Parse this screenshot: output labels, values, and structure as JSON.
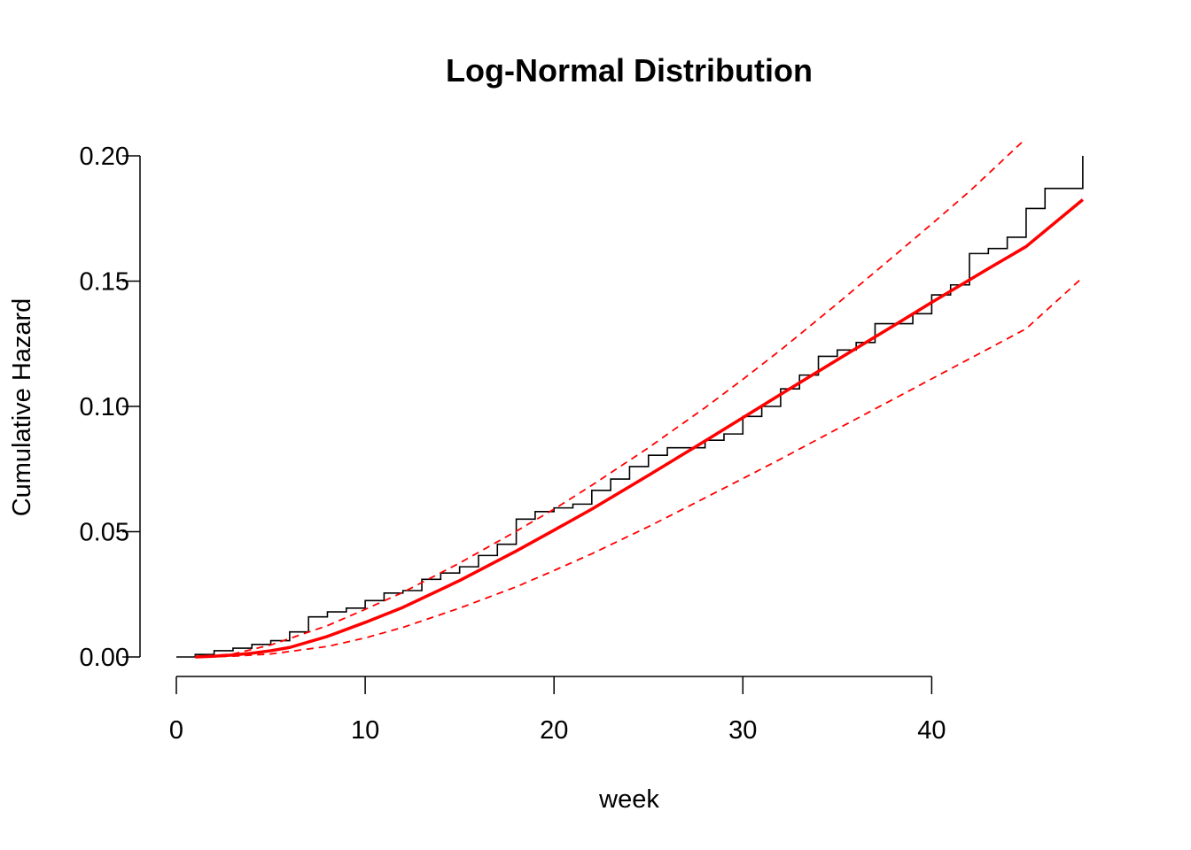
{
  "chart_data": {
    "type": "line",
    "title": "Log-Normal Distribution",
    "xlabel": "week",
    "ylabel": "Cumulative Hazard",
    "xlim": [
      0,
      48
    ],
    "ylim": [
      0,
      0.2
    ],
    "x_ticks": [
      0,
      10,
      20,
      30,
      40
    ],
    "x_tick_labels": [
      "0",
      "10",
      "20",
      "30",
      "40"
    ],
    "y_ticks": [
      0,
      0.05,
      0.1,
      0.15,
      0.2
    ],
    "y_tick_labels": [
      "0.00",
      "0.05",
      "0.10",
      "0.15",
      "0.20"
    ],
    "grid": false,
    "legend": "none",
    "colors": {
      "step": "#000000",
      "fit": "#ff0000",
      "ci": "#ff0000"
    },
    "series": [
      {
        "style": "step",
        "points": [
          [
            0,
            0
          ],
          [
            1,
            0.001
          ],
          [
            2,
            0.0025
          ],
          [
            3,
            0.0035
          ],
          [
            4,
            0.005
          ],
          [
            5,
            0.0065
          ],
          [
            6,
            0.01
          ],
          [
            7,
            0.016
          ],
          [
            8,
            0.018
          ],
          [
            9,
            0.0195
          ],
          [
            10,
            0.0225
          ],
          [
            11,
            0.0255
          ],
          [
            12,
            0.0265
          ],
          [
            13,
            0.031
          ],
          [
            14,
            0.0335
          ],
          [
            15,
            0.036
          ],
          [
            16,
            0.0405
          ],
          [
            17,
            0.045
          ],
          [
            18,
            0.055
          ],
          [
            19,
            0.058
          ],
          [
            20,
            0.0595
          ],
          [
            21,
            0.061
          ],
          [
            22,
            0.0665
          ],
          [
            23,
            0.071
          ],
          [
            24,
            0.076
          ],
          [
            25,
            0.0805
          ],
          [
            26,
            0.0835
          ],
          [
            28,
            0.0865
          ],
          [
            29,
            0.089
          ],
          [
            30,
            0.096
          ],
          [
            31,
            0.1
          ],
          [
            32,
            0.107
          ],
          [
            33,
            0.1125
          ],
          [
            34,
            0.12
          ],
          [
            35,
            0.1225
          ],
          [
            36,
            0.1255
          ],
          [
            37,
            0.133
          ],
          [
            39,
            0.137
          ],
          [
            40,
            0.1445
          ],
          [
            41,
            0.1485
          ],
          [
            42,
            0.161
          ],
          [
            43,
            0.163
          ],
          [
            44,
            0.1675
          ],
          [
            45,
            0.179
          ],
          [
            46,
            0.187
          ],
          [
            48,
            0.2
          ]
        ]
      },
      {
        "style": "solid",
        "x": [
          1,
          2,
          3,
          4,
          5,
          6,
          8,
          10,
          12,
          15,
          18,
          20,
          22,
          25,
          28,
          30,
          32,
          35,
          38,
          40,
          43,
          45,
          48
        ],
        "y": [
          0,
          0.0003,
          0.0008,
          0.0015,
          0.0025,
          0.0038,
          0.0082,
          0.0138,
          0.0198,
          0.0305,
          0.0423,
          0.0506,
          0.059,
          0.0725,
          0.0862,
          0.0955,
          0.1048,
          0.1186,
          0.1323,
          0.1415,
          0.155,
          0.1638,
          0.1825
        ]
      },
      {
        "style": "dashed",
        "x": [
          1,
          3,
          5,
          8,
          10,
          12,
          15,
          18,
          20,
          22,
          25,
          28,
          30,
          32,
          35,
          38,
          40,
          42,
          45
        ],
        "y": [
          0,
          0.0012,
          0.0048,
          0.0125,
          0.019,
          0.0258,
          0.0375,
          0.0502,
          0.059,
          0.0685,
          0.0835,
          0.0995,
          0.1108,
          0.1225,
          0.141,
          0.16,
          0.1728,
          0.1858,
          0.207
        ]
      },
      {
        "style": "dashed",
        "x": [
          1,
          3,
          5,
          8,
          10,
          12,
          15,
          18,
          20,
          22,
          25,
          28,
          30,
          32,
          35,
          38,
          40,
          43,
          45,
          48
        ],
        "y": [
          0,
          0.0003,
          0.0012,
          0.0042,
          0.0076,
          0.0118,
          0.0195,
          0.028,
          0.0345,
          0.0412,
          0.052,
          0.0635,
          0.0712,
          0.079,
          0.091,
          0.103,
          0.111,
          0.123,
          0.131,
          0.1515
        ]
      }
    ]
  }
}
